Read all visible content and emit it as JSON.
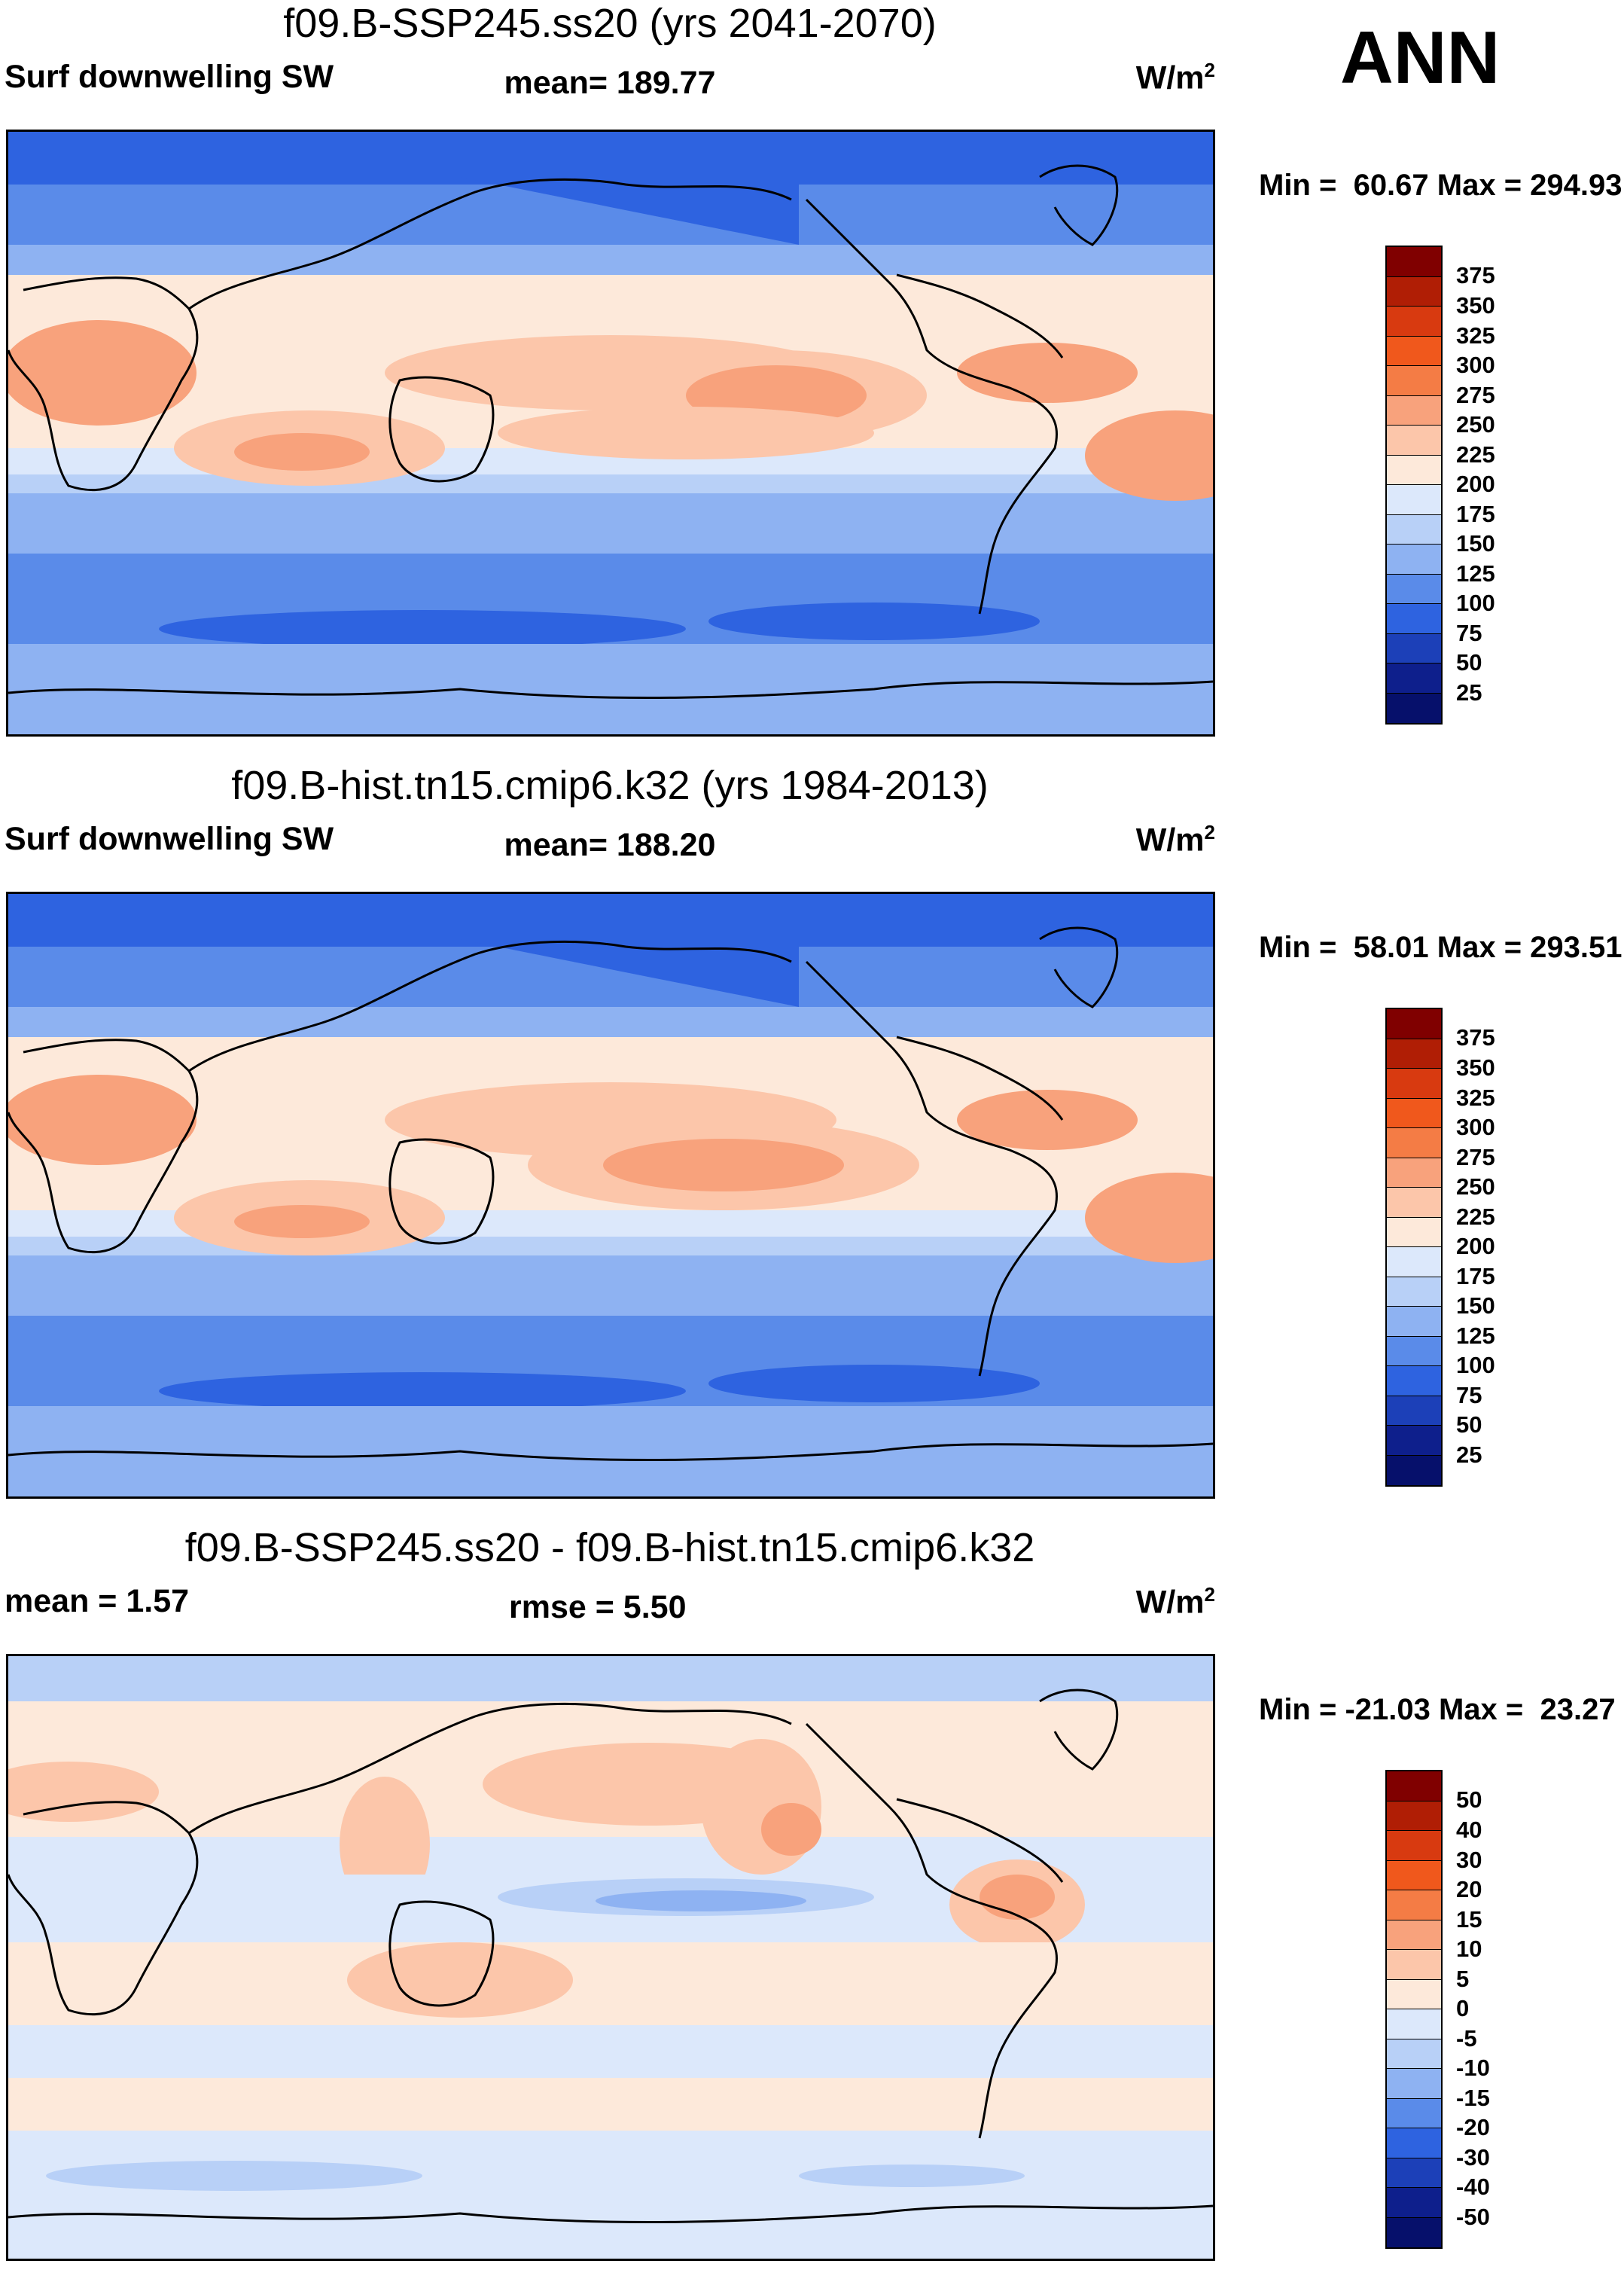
{
  "season_label": "ANN",
  "panels": [
    {
      "title": "f09.B-SSP245.ss20 (yrs 2041-2070)",
      "variable": "Surf downwelling SW",
      "stat1": "mean= 189.77",
      "units": "W/m",
      "units_sup": "2",
      "minmax": "Min =  60.67 Max = 294.93",
      "colorbar_labels": [
        "375",
        "350",
        "325",
        "300",
        "275",
        "250",
        "225",
        "200",
        "175",
        "150",
        "125",
        "100",
        "75",
        "50",
        "25"
      ]
    },
    {
      "title": "f09.B-hist.tn15.cmip6.k32 (yrs 1984-2013)",
      "variable": "Surf downwelling SW",
      "stat1": "mean= 188.20",
      "units": "W/m",
      "units_sup": "2",
      "minmax": "Min =  58.01 Max = 293.51",
      "colorbar_labels": [
        "375",
        "350",
        "325",
        "300",
        "275",
        "250",
        "225",
        "200",
        "175",
        "150",
        "125",
        "100",
        "75",
        "50",
        "25"
      ]
    },
    {
      "title": "f09.B-SSP245.ss20 - f09.B-hist.tn15.cmip6.k32",
      "variable": "mean =   1.57",
      "stat1": "rmse =   5.50",
      "units": "W/m",
      "units_sup": "2",
      "minmax": "Min = -21.03 Max =  23.27",
      "colorbar_labels": [
        "50",
        "40",
        "30",
        "20",
        "15",
        "10",
        "5",
        "0",
        "-5",
        "-10",
        "-15",
        "-20",
        "-30",
        "-40",
        "-50"
      ]
    }
  ],
  "colors": {
    "scale": [
      "#800000",
      "#b01e05",
      "#d83a10",
      "#f0581c",
      "#f47c45",
      "#f8a27c",
      "#fcc6aa",
      "#fde9da",
      "#dce8fb",
      "#b8d0f7",
      "#8eb2f2",
      "#5a8be9",
      "#2e63e0",
      "#1c40b8",
      "#0e1f8c",
      "#06106b"
    ],
    "coast": "#000000"
  }
}
